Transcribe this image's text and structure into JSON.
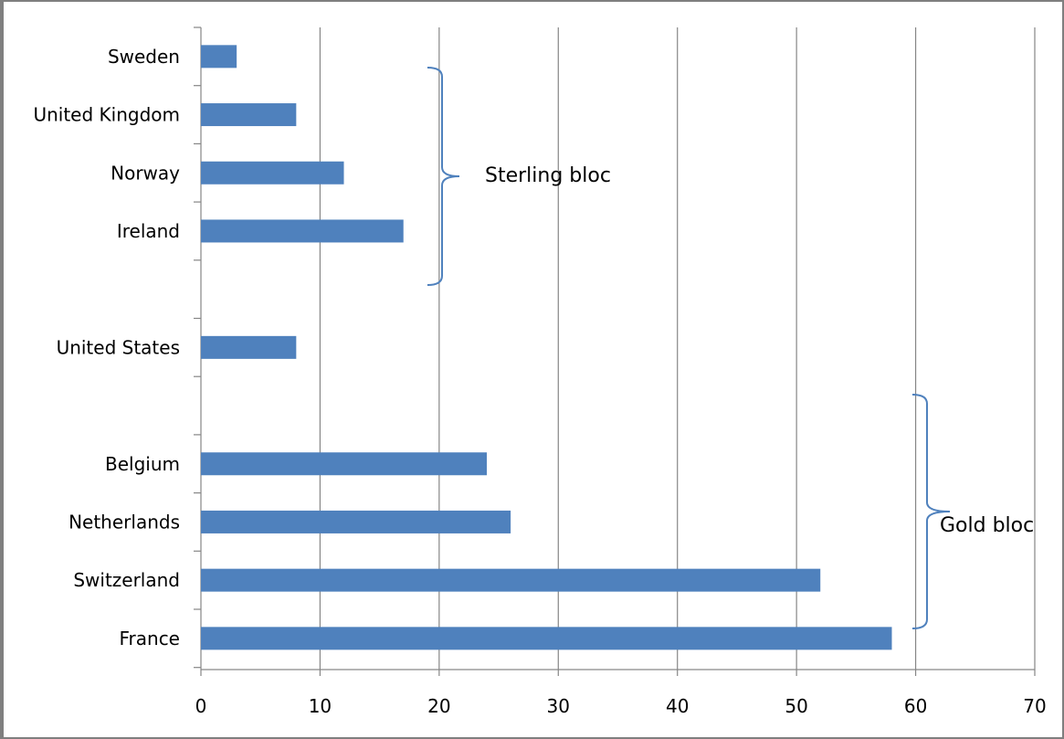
{
  "chart_data": {
    "type": "bar",
    "orientation": "horizontal",
    "categories": [
      "Sweden",
      "United Kingdom",
      "Norway",
      "Ireland",
      "",
      "United States",
      "",
      "Belgium",
      "Netherlands",
      "Switzerland",
      "France"
    ],
    "values": [
      3,
      8,
      12,
      17,
      null,
      8,
      null,
      24,
      26,
      52,
      58
    ],
    "title": "",
    "xlabel": "",
    "ylabel": "",
    "xlim": [
      0,
      70
    ],
    "x_ticks": [
      0,
      10,
      20,
      30,
      40,
      50,
      60,
      70
    ],
    "x_tick_labels": [
      "0",
      "10",
      "20",
      "30",
      "40",
      "50",
      "60",
      "70"
    ],
    "grid": "vertical major gridlines",
    "legend": "none",
    "bar_color": "#4f81bd",
    "grid_color": "#868686",
    "annotations": [
      {
        "label": "Sterling bloc",
        "spans": [
          "Sweden",
          "United Kingdom",
          "Norway",
          "Ireland"
        ],
        "marker": "right curly brace"
      },
      {
        "label": "Gold bloc",
        "spans": [
          "Belgium",
          "Netherlands",
          "Switzerland",
          "France"
        ],
        "marker": "right curly brace"
      }
    ],
    "annotation_color": "#4f81bd"
  }
}
